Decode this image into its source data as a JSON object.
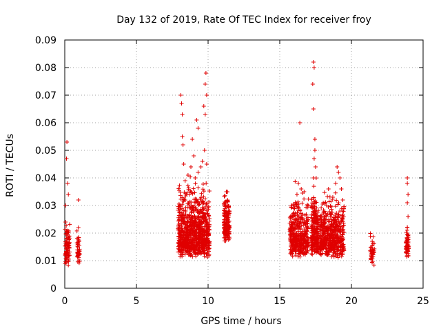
{
  "chart_data": {
    "type": "scatter",
    "title": "Day 132 of 2019, Rate Of TEC Index for receiver froy",
    "xlabel": "GPS time / hours",
    "ylabel": "ROTI / TECUs",
    "xlim": [
      0,
      25
    ],
    "ylim": [
      0,
      0.09
    ],
    "grid": true,
    "marker": "+",
    "marker_color": "#e00000",
    "x_ticks": [
      "0",
      "5",
      "10",
      "15",
      "20",
      "25"
    ],
    "y_ticks": [
      "0",
      "0.01",
      "0.02",
      "0.03",
      "0.04",
      "0.05",
      "0.06",
      "0.07",
      "0.08",
      "0.09"
    ],
    "x_tick_values": [
      0,
      5,
      10,
      15,
      20,
      25
    ],
    "y_tick_values": [
      0,
      0.01,
      0.02,
      0.03,
      0.04,
      0.05,
      0.06,
      0.07,
      0.08,
      0.09
    ],
    "clusters": [
      {
        "x_range": [
          0.0,
          0.35
        ],
        "n": 90,
        "base": 0.01,
        "spread": 0.006,
        "extremes": [
          [
            0.12,
            0.047
          ],
          [
            0.15,
            0.053
          ],
          [
            0.2,
            0.038
          ],
          [
            0.25,
            0.034
          ],
          [
            0.05,
            0.03
          ],
          [
            0.05,
            0.024
          ]
        ]
      },
      {
        "x_range": [
          0.85,
          1.05
        ],
        "n": 40,
        "base": 0.01,
        "spread": 0.005,
        "extremes": [
          [
            0.95,
            0.032
          ],
          [
            0.95,
            0.022
          ],
          [
            1.0,
            0.017
          ]
        ]
      },
      {
        "x_range": [
          7.9,
          10.1
        ],
        "n": 850,
        "base": 0.013,
        "spread": 0.01,
        "extremes": [
          [
            8.1,
            0.07
          ],
          [
            8.15,
            0.067
          ],
          [
            8.2,
            0.063
          ],
          [
            8.2,
            0.055
          ],
          [
            8.25,
            0.052
          ],
          [
            8.3,
            0.045
          ],
          [
            8.4,
            0.039
          ],
          [
            8.9,
            0.054
          ],
          [
            9.2,
            0.061
          ],
          [
            9.3,
            0.058
          ],
          [
            9.7,
            0.066
          ],
          [
            9.8,
            0.063
          ],
          [
            9.85,
            0.078
          ],
          [
            9.8,
            0.074
          ],
          [
            9.9,
            0.07
          ],
          [
            9.75,
            0.05
          ],
          [
            9.6,
            0.046
          ],
          [
            9.5,
            0.044
          ],
          [
            9.3,
            0.042
          ],
          [
            9.0,
            0.048
          ],
          [
            8.8,
            0.044
          ],
          [
            8.6,
            0.041
          ],
          [
            9.1,
            0.04
          ],
          [
            9.9,
            0.045
          ]
        ]
      },
      {
        "x_range": [
          11.1,
          11.5
        ],
        "n": 170,
        "base": 0.018,
        "spread": 0.008,
        "extremes": [
          [
            11.3,
            0.035
          ],
          [
            11.35,
            0.032
          ],
          [
            11.25,
            0.03
          ]
        ]
      },
      {
        "x_range": [
          15.7,
          17.0
        ],
        "n": 420,
        "base": 0.013,
        "spread": 0.009,
        "extremes": [
          [
            16.4,
            0.06
          ],
          [
            16.3,
            0.038
          ],
          [
            16.5,
            0.036
          ],
          [
            16.2,
            0.034
          ],
          [
            16.7,
            0.035
          ],
          [
            15.8,
            0.03
          ]
        ]
      },
      {
        "x_range": [
          17.2,
          17.7
        ],
        "n": 230,
        "base": 0.014,
        "spread": 0.01,
        "extremes": [
          [
            17.35,
            0.082
          ],
          [
            17.4,
            0.08
          ],
          [
            17.3,
            0.074
          ],
          [
            17.35,
            0.065
          ],
          [
            17.45,
            0.054
          ],
          [
            17.45,
            0.05
          ],
          [
            17.4,
            0.047
          ],
          [
            17.5,
            0.044
          ],
          [
            17.35,
            0.04
          ]
        ]
      },
      {
        "x_range": [
          17.8,
          19.5
        ],
        "n": 520,
        "base": 0.013,
        "spread": 0.009,
        "extremes": [
          [
            19.0,
            0.044
          ],
          [
            19.1,
            0.042
          ],
          [
            19.2,
            0.04
          ],
          [
            18.9,
            0.038
          ],
          [
            19.3,
            0.036
          ],
          [
            18.4,
            0.036
          ],
          [
            18.7,
            0.033
          ],
          [
            19.4,
            0.032
          ]
        ]
      },
      {
        "x_range": [
          21.3,
          21.6
        ],
        "n": 40,
        "base": 0.01,
        "spread": 0.004,
        "extremes": [
          [
            21.45,
            0.017
          ],
          [
            21.5,
            0.014
          ]
        ]
      },
      {
        "x_range": [
          23.8,
          24.0
        ],
        "n": 60,
        "base": 0.012,
        "spread": 0.005,
        "extremes": [
          [
            23.9,
            0.04
          ],
          [
            23.9,
            0.038
          ],
          [
            23.95,
            0.034
          ],
          [
            23.9,
            0.031
          ],
          [
            23.95,
            0.026
          ],
          [
            23.9,
            0.022
          ]
        ]
      }
    ]
  }
}
